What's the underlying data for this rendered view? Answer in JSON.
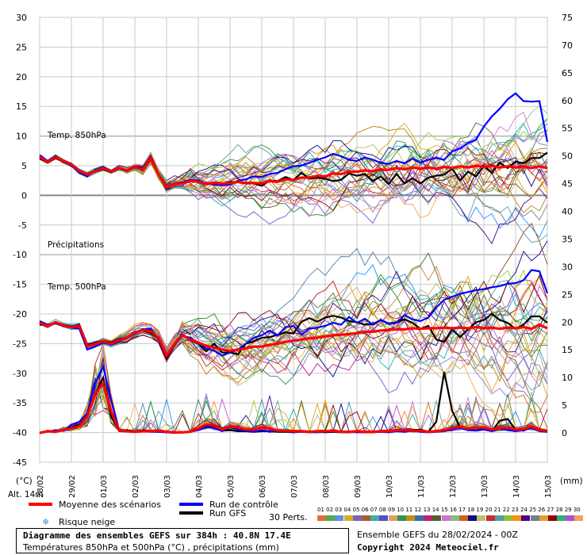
{
  "chart_data": {
    "type": "line",
    "title": "Diagramme des ensembles GEFS sur 384h : 40.8N 17.4E",
    "subtitle": "Températures 850hPa et 500hPa (°C) , précipitations (mm)",
    "left_axis_unit": "(°C)",
    "right_axis_unit": "(mm)",
    "altitude_label": "Alt. 14m",
    "left_axis_ticks": [
      30,
      25,
      20,
      15,
      10,
      5,
      0,
      -5,
      -10,
      -15,
      -20,
      -25,
      -30,
      -35,
      -40,
      -45
    ],
    "right_axis_ticks": [
      75,
      70,
      65,
      60,
      55,
      50,
      45,
      40,
      35,
      30,
      25,
      20,
      15,
      10,
      5,
      0
    ],
    "ylim_left": [
      -45,
      30
    ],
    "ylim_right": [
      0,
      75
    ],
    "x_tick_labels": [
      "28/02",
      "29/02",
      "01/03",
      "02/03",
      "03/03",
      "04/03",
      "05/03",
      "06/03",
      "07/03",
      "08/03",
      "09/03",
      "10/03",
      "11/03",
      "12/03",
      "13/03",
      "14/03",
      "15/03"
    ],
    "panel_labels": [
      "Temp. 850hPa",
      "Précipitations",
      "Temp. 500hPa"
    ],
    "series": [
      {
        "name": "Moyenne des scénarios",
        "color": "#ff0000",
        "t850": [
          6.5,
          5.6,
          6.5,
          5.8,
          5.2,
          4.1,
          3.5,
          4.1,
          4.6,
          4.0,
          4.6,
          4.2,
          4.8,
          4.3,
          6.2,
          3.5,
          1.3,
          1.9,
          2.0,
          2.4,
          2.3,
          1.9,
          2.1,
          2.0,
          2.1,
          2.3,
          2.1,
          2.1,
          2.0,
          2.4,
          2.3,
          2.7,
          2.6,
          3.0,
          3.0,
          3.3,
          3.2,
          3.7,
          3.6,
          4.0,
          4.0,
          4.2,
          4.1,
          4.3,
          4.3,
          4.6,
          4.4,
          4.7,
          4.5,
          4.7,
          4.5,
          4.8,
          4.6,
          4.9,
          4.7,
          5.0,
          4.8,
          5.0,
          4.7,
          4.9,
          4.7,
          4.9,
          4.6,
          4.9,
          4.6
        ],
        "t500": [
          -21.5,
          -22.0,
          -21.4,
          -21.9,
          -22.2,
          -22.0,
          -25.4,
          -25.1,
          -24.6,
          -25.0,
          -24.4,
          -24.0,
          -23.1,
          -22.7,
          -22.9,
          -24.0,
          -27.0,
          -25.0,
          -23.5,
          -24.4,
          -24.8,
          -25.4,
          -25.7,
          -26.0,
          -26.2,
          -26.0,
          -25.8,
          -25.5,
          -25.5,
          -25.2,
          -25.0,
          -24.7,
          -24.5,
          -24.3,
          -24.1,
          -24.0,
          -23.8,
          -23.6,
          -23.5,
          -23.4,
          -23.2,
          -23.0,
          -23.0,
          -22.8,
          -22.7,
          -22.6,
          -22.6,
          -22.4,
          -22.5,
          -22.4,
          -22.4,
          -22.3,
          -22.4,
          -22.3,
          -22.4,
          -22.2,
          -22.4,
          -22.3,
          -22.5,
          -22.3,
          -22.4,
          -22.2,
          -22.5,
          -21.8,
          -22.4
        ],
        "precip": [
          0,
          0.3,
          0.2,
          0.6,
          0.8,
          1.2,
          3.0,
          7.0,
          9.0,
          4.0,
          0.5,
          0.3,
          0.2,
          0.3,
          0.3,
          0.4,
          0.2,
          0.1,
          0.1,
          0.2,
          0.8,
          1.5,
          1.4,
          0.6,
          1.2,
          1.0,
          0.6,
          0.6,
          1.0,
          0.8,
          0.4,
          0.4,
          0.3,
          0.3,
          0.2,
          0.3,
          0.3,
          0.4,
          0.2,
          0.2,
          0.3,
          0.2,
          0.2,
          0.3,
          0.3,
          0.5,
          0.5,
          0.4,
          0.4,
          0.2,
          0.3,
          0.5,
          0.9,
          1.1,
          0.8,
          0.9,
          1.0,
          0.6,
          0.9,
          1.0,
          0.6,
          0.7,
          1.2,
          0.5,
          0.4
        ]
      },
      {
        "name": "Run de contrôle",
        "color": "#0000ff",
        "t850": [
          6.8,
          5.8,
          6.7,
          5.6,
          5.1,
          3.8,
          3.2,
          4.3,
          4.8,
          4.1,
          4.5,
          4.3,
          4.9,
          4.5,
          6.3,
          3.6,
          1.0,
          2.0,
          2.2,
          2.6,
          2.5,
          2.0,
          1.8,
          1.7,
          1.8,
          2.5,
          2.7,
          3.2,
          3.1,
          3.6,
          3.8,
          4.4,
          4.9,
          5.0,
          5.5,
          6.0,
          6.4,
          7.0,
          6.6,
          6.0,
          5.8,
          6.4,
          6.0,
          5.5,
          5.3,
          5.8,
          5.4,
          6.2,
          5.5,
          6.0,
          6.3,
          6.0,
          7.4,
          7.9,
          8.8,
          9.4,
          11.6,
          13.3,
          14.6,
          16.2,
          17.2,
          15.9,
          15.8,
          15.9,
          9.0
        ],
        "t500": [
          -21.2,
          -21.8,
          -21.6,
          -22.0,
          -22.3,
          -22.5,
          -26.0,
          -25.5,
          -24.8,
          -25.2,
          -24.6,
          -24.1,
          -23.3,
          -22.6,
          -22.5,
          -24.2,
          -26.8,
          -25.2,
          -23.7,
          -24.0,
          -25.0,
          -25.8,
          -26.2,
          -27.0,
          -26.5,
          -26.0,
          -25.0,
          -24.0,
          -23.6,
          -22.8,
          -23.6,
          -22.2,
          -22.0,
          -23.5,
          -22.5,
          -22.3,
          -22.0,
          -21.5,
          -21.8,
          -20.5,
          -21.5,
          -20.8,
          -21.8,
          -21.0,
          -21.7,
          -21.5,
          -20.2,
          -20.9,
          -21.2,
          -20.6,
          -18.9,
          -17.6,
          -17.1,
          -16.6,
          -16.3,
          -16.0,
          -15.8,
          -15.5,
          -15.3,
          -14.9,
          -14.8,
          -14.3,
          -12.6,
          -12.8,
          -16.5
        ],
        "precip": [
          0,
          0.2,
          0.5,
          0.4,
          1.5,
          2.0,
          3.5,
          9.0,
          12.0,
          6.0,
          0.6,
          0.3,
          0.2,
          0.3,
          0.2,
          0.2,
          0.1,
          0.0,
          0.1,
          0.2,
          0.5,
          1.0,
          0.9,
          0.3,
          1.1,
          0.6,
          0.4,
          0.2,
          0.5,
          0.2,
          0.4,
          0.3,
          0.1,
          0.2,
          0.1,
          0.1,
          0.2,
          0.3,
          0.2,
          0.2,
          0.1,
          0.1,
          0.3,
          0.2,
          0.1,
          0.3,
          0.2,
          0.4,
          0.2,
          0.1,
          0.2,
          0.3,
          0.6,
          0.9,
          0.5,
          0.4,
          0.6,
          0.3,
          0.8,
          0.5,
          0.3,
          0.5,
          0.9,
          0.3,
          0.2
        ]
      },
      {
        "name": "Run GFS",
        "color": "#000000",
        "t850": [
          6.2,
          5.5,
          6.3,
          5.7,
          5.0,
          4.0,
          3.6,
          4.0,
          4.4,
          3.9,
          4.5,
          4.1,
          4.7,
          4.2,
          6.0,
          3.4,
          1.4,
          2.0,
          2.1,
          2.5,
          2.2,
          1.8,
          2.2,
          2.0,
          2.3,
          2.2,
          2.0,
          2.0,
          1.6,
          2.5,
          2.4,
          3.1,
          2.6,
          3.8,
          2.8,
          3.0,
          2.8,
          2.4,
          2.6,
          3.7,
          3.3,
          3.6,
          2.4,
          3.2,
          1.9,
          3.6,
          2.0,
          2.9,
          2.0,
          3.0,
          3.3,
          3.5,
          4.5,
          2.5,
          4.0,
          3.2,
          5.0,
          3.8,
          5.5,
          4.6,
          5.7,
          5.4,
          6.3,
          6.3,
          7.2
        ],
        "t500": [
          -21.8,
          -21.9,
          -21.5,
          -21.8,
          -22.1,
          -21.8,
          -25.2,
          -25.0,
          -24.5,
          -24.8,
          -24.2,
          -24.0,
          -23.0,
          -22.8,
          -23.2,
          -24.2,
          -27.4,
          -25.2,
          -23.6,
          -24.5,
          -25.0,
          -26.3,
          -25.0,
          -26.5,
          -26.5,
          -26.8,
          -25.0,
          -24.6,
          -24.0,
          -23.9,
          -23.5,
          -23.1,
          -23.3,
          -21.3,
          -20.7,
          -21.3,
          -20.6,
          -20.3,
          -20.6,
          -21.2,
          -21.4,
          -21.8,
          -21.7,
          -21.0,
          -21.6,
          -21.4,
          -20.9,
          -21.5,
          -22.5,
          -22.0,
          -24.3,
          -24.7,
          -22.6,
          -23.9,
          -22.6,
          -21.4,
          -21.0,
          -20.0,
          -21.0,
          -21.5,
          -22.5,
          -21.8,
          -20.4,
          -20.4,
          -21.5
        ],
        "precip": [
          0,
          0.3,
          0.4,
          0.6,
          1.0,
          1.5,
          3.0,
          7.0,
          10.0,
          3.0,
          0.4,
          0.5,
          0.3,
          0.5,
          0.3,
          0.2,
          0.1,
          0.1,
          0.1,
          0.2,
          0.8,
          1.2,
          1.0,
          0.4,
          0.5,
          0.3,
          0.3,
          0.2,
          0.3,
          0.3,
          0.2,
          0.2,
          0.1,
          0.3,
          0.2,
          0.2,
          0.1,
          0.2,
          0.1,
          0.1,
          0.2,
          0.1,
          0.1,
          0.2,
          0.3,
          0.4,
          0.2,
          0.5,
          0.6,
          0.2,
          2.0,
          11.0,
          4.0,
          1.0,
          0.8,
          0.4,
          1.0,
          0.3,
          2.2,
          2.5,
          0.6,
          0.4,
          1.2,
          0.6,
          0.3
        ]
      }
    ],
    "member_colors": [
      "#8b4513",
      "#228b22",
      "#1e90ff",
      "#d4a017",
      "#9370db",
      "#a0522d",
      "#20b2aa",
      "#6a5acd",
      "#cd853f",
      "#2e8b57",
      "#b8860b",
      "#4682b4",
      "#c71585",
      "#556b2f",
      "#da70d6",
      "#8fbc8f",
      "#d2691e",
      "#00008b",
      "#bdb76b",
      "#b22222",
      "#5f9ea0",
      "#9acd32",
      "#ff8c00",
      "#4b0082",
      "#708090",
      "#daa520",
      "#800000",
      "#3cb371",
      "#ba55d3",
      "#f4a460"
    ],
    "n_points": 65,
    "x_start_index": 0
  },
  "legend": {
    "mean_label": "Moyenne des scénarios",
    "control_label": "Run de contrôle",
    "gfs_label": "Run GFS",
    "snow_label": "Risque neige",
    "perts_label": "30 Perts.",
    "perts_numbers": "01 02 03 04 05 06 07 08 09 10 11 12 13 14 15 16 17 18 19 20 21 22 23 24 25 26 27 28 29 30",
    "perts_colors": [
      "#e07030",
      "#48b048",
      "#6090e0",
      "#d4b020",
      "#8060c0",
      "#a06030",
      "#40b0a0",
      "#5050c0",
      "#e0a060",
      "#309060",
      "#c09010",
      "#3070b0",
      "#c02070",
      "#506030",
      "#d070d0",
      "#80c080",
      "#d06020",
      "#101080",
      "#c0c070",
      "#c03030",
      "#50a0a0",
      "#90c030",
      "#ff9010",
      "#500080",
      "#708090",
      "#e0a030",
      "#900000",
      "#30b070",
      "#b050d0",
      "#f0a060"
    ]
  },
  "footer": {
    "title": "Diagramme des ensembles GEFS sur 384h : 40.8N 17.4E",
    "subtitle": "Températures 850hPa et 500hPa (°C) , précipitations (mm)",
    "run_info": "Ensemble GEFS du 28/02/2024 - 00Z",
    "copyright": "Copyright 2024 Meteociel.fr"
  }
}
